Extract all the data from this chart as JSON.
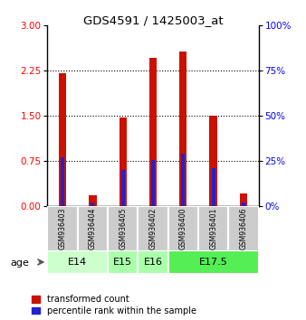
{
  "title": "GDS4591 / 1425003_at",
  "samples": [
    "GSM936403",
    "GSM936404",
    "GSM936405",
    "GSM936402",
    "GSM936400",
    "GSM936401",
    "GSM936406"
  ],
  "transformed_count": [
    2.21,
    0.18,
    1.47,
    2.47,
    2.57,
    1.5,
    0.22
  ],
  "percentile_rank_scaled": [
    0.82,
    0.07,
    0.61,
    0.77,
    0.88,
    0.63,
    0.07
  ],
  "ylim_left": [
    0,
    3
  ],
  "ylim_right": [
    0,
    100
  ],
  "yticks_left": [
    0,
    0.75,
    1.5,
    2.25,
    3
  ],
  "yticks_right": [
    0,
    25,
    50,
    75,
    100
  ],
  "bar_color_red": "#cc1100",
  "bar_color_blue": "#2222cc",
  "red_bar_width": 0.25,
  "blue_bar_width": 0.12,
  "bg_plot": "#ffffff",
  "bg_sample": "#cccccc",
  "legend_items": [
    "transformed count",
    "percentile rank within the sample"
  ],
  "age_group_defs": [
    {
      "start": 0,
      "end": 1,
      "label": "E14",
      "color": "#ccffcc"
    },
    {
      "start": 2,
      "end": 2,
      "label": "E15",
      "color": "#aaffaa"
    },
    {
      "start": 3,
      "end": 3,
      "label": "E16",
      "color": "#aaffaa"
    },
    {
      "start": 4,
      "end": 6,
      "label": "E17.5",
      "color": "#55ee55"
    }
  ]
}
